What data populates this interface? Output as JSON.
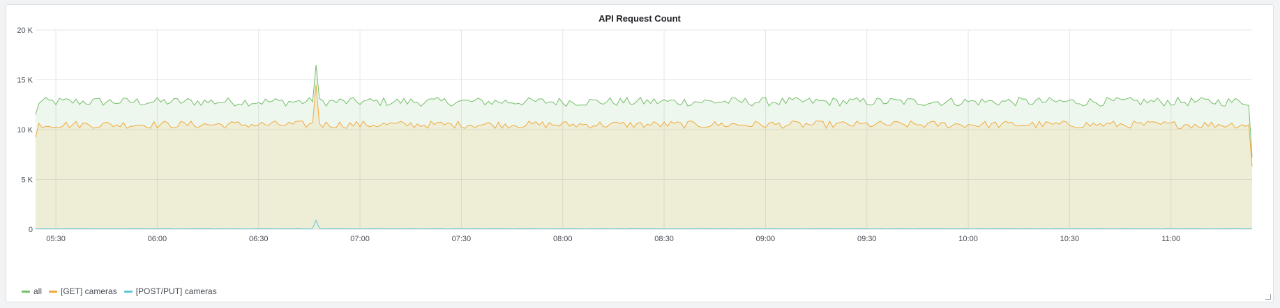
{
  "panel": {
    "title": "API Request Count"
  },
  "colors": {
    "all": "#73bf69",
    "get": "#f2a93b",
    "post": "#5cc8d7",
    "grid": "#e4e6ea",
    "tick": "#464c54"
  },
  "chart_data": {
    "type": "area",
    "title": "API Request Count",
    "x_range": [
      "05:24",
      "11:24"
    ],
    "x_ticks": [
      "05:30",
      "06:00",
      "06:30",
      "07:00",
      "07:30",
      "08:00",
      "08:30",
      "09:00",
      "09:30",
      "10:00",
      "10:30",
      "11:00"
    ],
    "y_ticks": [
      "0",
      "5 K",
      "10 K",
      "15 K",
      "20 K"
    ],
    "ylim": [
      0,
      20000
    ],
    "sample_interval": "1 minute",
    "grid": true,
    "legend_position": "bottom-left",
    "series": [
      {
        "name": "all",
        "color": "#73bf69",
        "fill": true,
        "base_level": 12800,
        "noise": 450,
        "start_value": 11500,
        "end_value": 7200,
        "spike": {
          "time": "06:47",
          "value": 16500
        }
      },
      {
        "name": "[GET] cameras",
        "color": "#f2a93b",
        "fill": true,
        "base_level": 10500,
        "noise": 380,
        "start_value": 9200,
        "end_value": 6300,
        "spike": {
          "time": "06:47",
          "value": 14500
        }
      },
      {
        "name": "[POST/PUT] cameras",
        "color": "#5cc8d7",
        "fill": false,
        "base_level": 80,
        "noise": 30,
        "spike": {
          "time": "06:47",
          "value": 900
        }
      }
    ]
  }
}
